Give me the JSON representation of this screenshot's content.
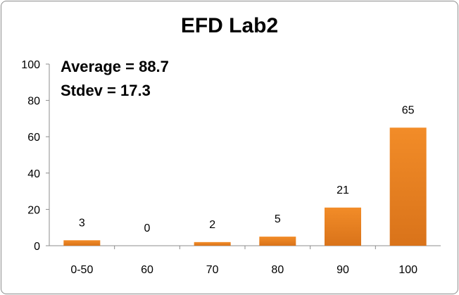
{
  "chart_data": {
    "type": "bar",
    "title": "EFD Lab2",
    "categories": [
      "0-50",
      "60",
      "70",
      "80",
      "90",
      "100"
    ],
    "values": [
      3,
      0,
      2,
      5,
      21,
      65
    ],
    "data_labels": [
      "3",
      "0",
      "2",
      "5",
      "21",
      "65"
    ],
    "ylim": [
      0,
      100
    ],
    "y_ticks": [
      "0",
      "20",
      "40",
      "60",
      "80",
      "100"
    ],
    "annotations": [
      "Average = 88.7",
      "Stdev = 17.3"
    ],
    "xlabel": "",
    "ylabel": "",
    "grid": false,
    "legend": "none",
    "bar_color": "#F28C28",
    "bar_color_dark": "#D9731A"
  }
}
